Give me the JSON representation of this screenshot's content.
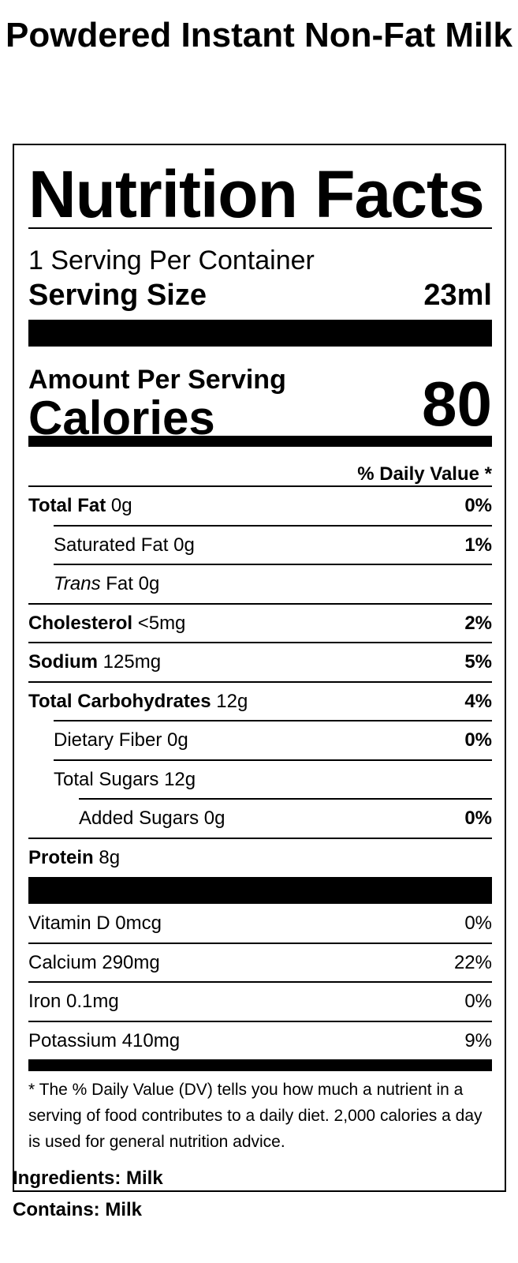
{
  "product": {
    "title": "Powdered Instant Non-Fat Milk"
  },
  "label": {
    "heading": "Nutrition Facts",
    "servings_per_container": "1 Serving Per Container",
    "serving_size_label": "Serving Size",
    "serving_size_value": "23ml",
    "amount_per_serving": "Amount Per Serving",
    "calories_label": "Calories",
    "calories_value": "80",
    "daily_value_header": "% Daily Value *",
    "nutrients": [
      {
        "name": "Total Fat",
        "amount": "0g",
        "dv": "0%"
      },
      {
        "name": "Saturated Fat",
        "amount": "0g",
        "dv": "1%"
      },
      {
        "name_italic": "Trans",
        "name": "Fat",
        "amount": "0g",
        "dv": ""
      },
      {
        "name": "Cholesterol",
        "amount": "<5mg",
        "dv": "2%"
      },
      {
        "name": "Sodium",
        "amount": "125mg",
        "dv": "5%"
      },
      {
        "name": "Total Carbohydrates",
        "amount": "12g",
        "dv": "4%"
      },
      {
        "name": "Dietary Fiber",
        "amount": "0g",
        "dv": "0%"
      },
      {
        "name": "Total Sugars",
        "amount": "12g",
        "dv": ""
      },
      {
        "name": "Added Sugars",
        "amount": "0g",
        "dv": "0%"
      },
      {
        "name": "Protein",
        "amount": "8g",
        "dv": ""
      }
    ],
    "vitamins": [
      {
        "text": "Vitamin D 0mcg",
        "dv": "0%"
      },
      {
        "text": "Calcium 290mg",
        "dv": "22%"
      },
      {
        "text": "Iron 0.1mg",
        "dv": "0%"
      },
      {
        "text": "Potassium 410mg",
        "dv": "9%"
      }
    ],
    "footnote": "* The % Daily Value (DV) tells you how much a nutrient in a serving of food contributes to a daily diet. 2,000 calories a day is used for general nutrition advice."
  },
  "ingredients": {
    "text": "Ingredients: Milk"
  },
  "allergens": {
    "text": "Contains: Milk"
  }
}
